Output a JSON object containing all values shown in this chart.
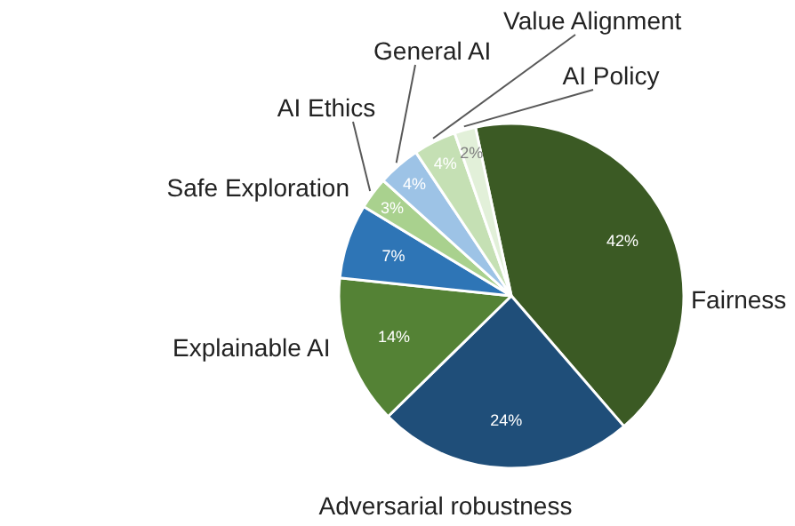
{
  "chart_data": {
    "type": "pie",
    "categories": [
      "Fairness",
      "Adversarial robustness",
      "Explainable AI",
      "Safe Exploration",
      "AI Ethics",
      "General AI",
      "Value Alignment",
      "AI Policy"
    ],
    "values": [
      42,
      24,
      14,
      7,
      3,
      4,
      4,
      2
    ],
    "colors": [
      "#3b5a24",
      "#1f4e79",
      "#548235",
      "#2e75b6",
      "#a9d18e",
      "#9dc3e6",
      "#c5e0b4",
      "#e2f0d9"
    ],
    "value_labels": [
      "42%",
      "24%",
      "14%",
      "7%",
      "3%",
      "4%",
      "4%",
      "2%"
    ]
  }
}
